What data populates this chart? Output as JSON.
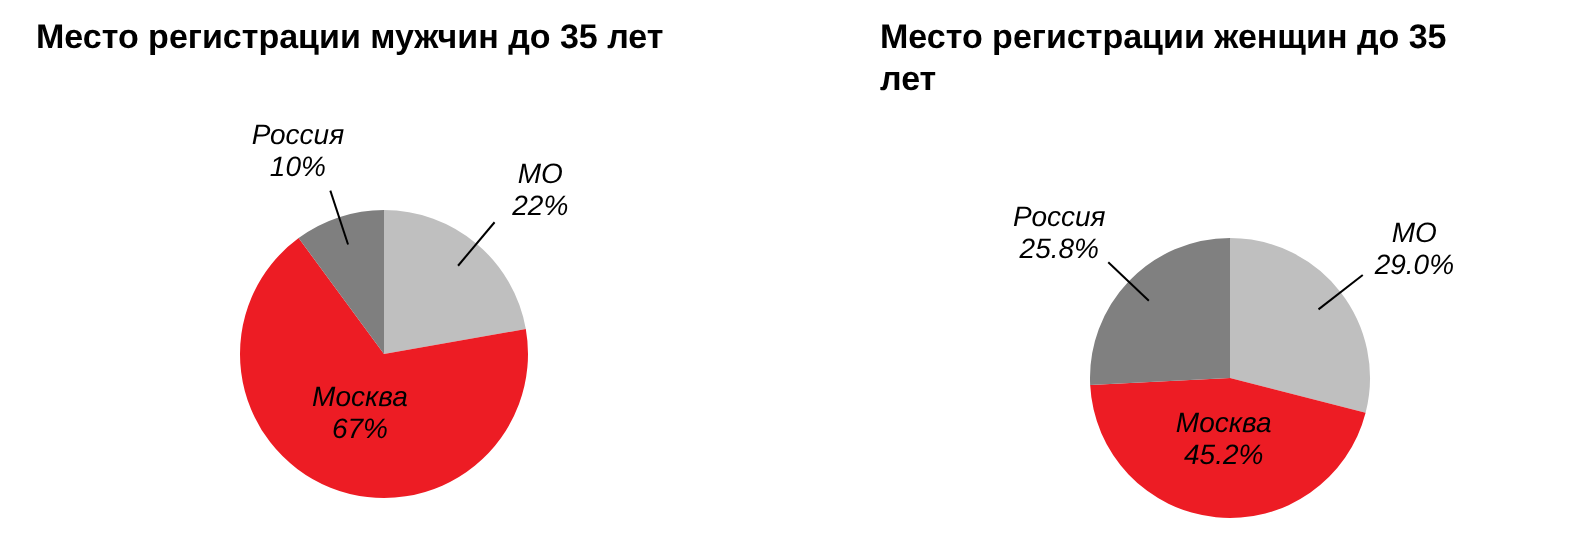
{
  "chart_data": [
    {
      "type": "pie",
      "title": "Место регистрации мужчин до 35 лет",
      "categories": [
        "МО",
        "Москва",
        "Россия"
      ],
      "values": [
        22,
        67,
        10
      ],
      "value_labels": [
        "22%",
        "67%",
        "10%"
      ],
      "colors": [
        "#bfbfbf",
        "#ed1c24",
        "#7f7f7f"
      ]
    },
    {
      "type": "pie",
      "title": "Место регистрации женщин до 35 лет",
      "categories": [
        "МО",
        "Москва",
        "Россия"
      ],
      "values": [
        29.0,
        45.2,
        25.8
      ],
      "value_labels": [
        "29.0%",
        "45.2%",
        "25.8%"
      ],
      "colors": [
        "#bfbfbf",
        "#ed1c24",
        "#808080"
      ]
    }
  ]
}
